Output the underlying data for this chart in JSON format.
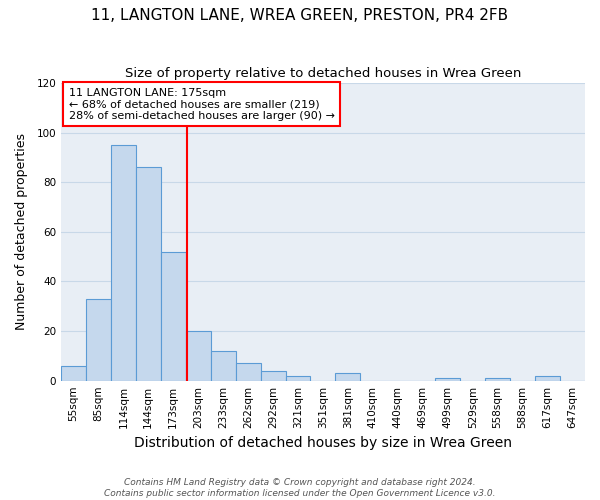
{
  "title": "11, LANGTON LANE, WREA GREEN, PRESTON, PR4 2FB",
  "subtitle": "Size of property relative to detached houses in Wrea Green",
  "xlabel": "Distribution of detached houses by size in Wrea Green",
  "ylabel": "Number of detached properties",
  "bar_labels": [
    "55sqm",
    "85sqm",
    "114sqm",
    "144sqm",
    "173sqm",
    "203sqm",
    "233sqm",
    "262sqm",
    "292sqm",
    "321sqm",
    "351sqm",
    "381sqm",
    "410sqm",
    "440sqm",
    "469sqm",
    "499sqm",
    "529sqm",
    "558sqm",
    "588sqm",
    "617sqm",
    "647sqm"
  ],
  "bar_values": [
    6,
    33,
    95,
    86,
    52,
    20,
    12,
    7,
    4,
    2,
    0,
    3,
    0,
    0,
    0,
    1,
    0,
    1,
    0,
    2,
    0
  ],
  "bar_color": "#c5d8ed",
  "bar_edge_color": "#5b9bd5",
  "ylim": [
    0,
    120
  ],
  "yticks": [
    0,
    20,
    40,
    60,
    80,
    100,
    120
  ],
  "annotation_line1": "11 LANGTON LANE: 175sqm",
  "annotation_line2": "← 68% of detached houses are smaller (219)",
  "annotation_line3": "28% of semi-detached houses are larger (90) →",
  "grid_color": "#c8d8e8",
  "background_color": "#e8eef5",
  "footer_line1": "Contains HM Land Registry data © Crown copyright and database right 2024.",
  "footer_line2": "Contains public sector information licensed under the Open Government Licence v3.0.",
  "title_fontsize": 11,
  "subtitle_fontsize": 9.5,
  "xlabel_fontsize": 10,
  "ylabel_fontsize": 9,
  "tick_fontsize": 7.5,
  "annotation_fontsize": 8,
  "footer_fontsize": 6.5
}
